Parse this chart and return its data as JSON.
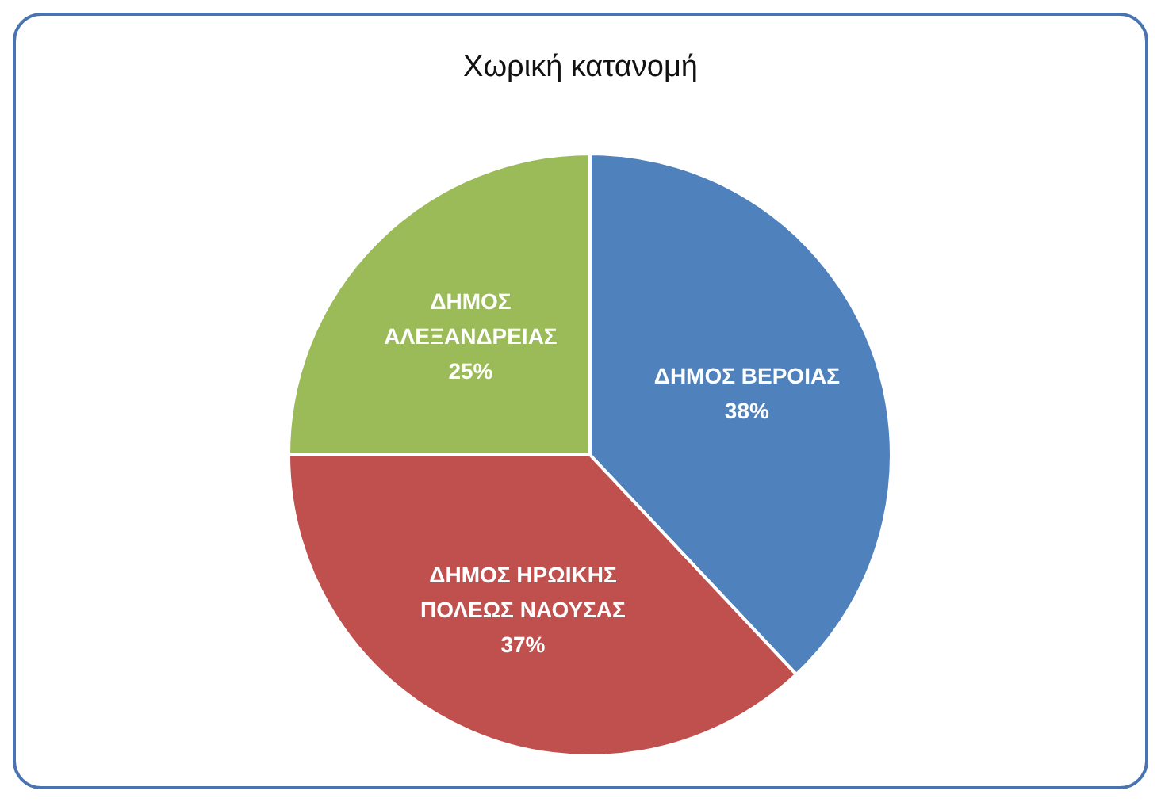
{
  "chart_data": {
    "type": "pie",
    "title": "Χωρική κατανομή",
    "categories": [
      "ΔΗΜΟΣ ΒΕΡΟΙΑΣ",
      "ΔΗΜΟΣ ΗΡΩΙΚΗΣ ΠΟΛΕΩΣ ΝΑΟΥΣΑΣ",
      "ΔΗΜΟΣ ΑΛΕΞΑΝΔΡΕΙΑΣ"
    ],
    "values": [
      38,
      37,
      25
    ],
    "value_labels": [
      "38%",
      "37%",
      "25%"
    ],
    "colors": [
      "#4f81bd",
      "#c0504d",
      "#9bbb59"
    ]
  }
}
